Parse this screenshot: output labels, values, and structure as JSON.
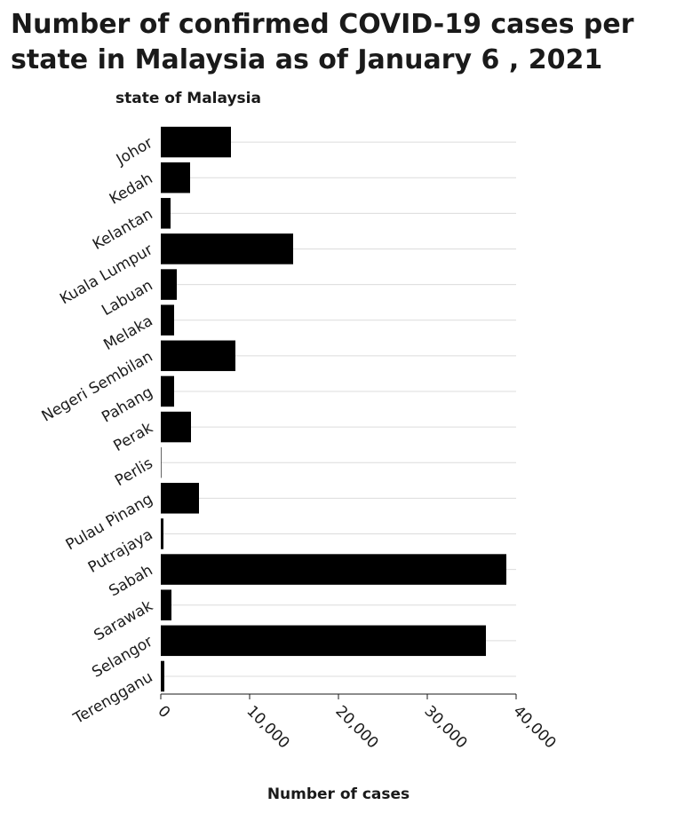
{
  "chart_data": {
    "type": "bar",
    "orientation": "horizontal",
    "title": "Number of confirmed COVID-19 cases per state in Malaysia as of January 6 , 2021",
    "xlabel": "Number of cases",
    "ylabel": "state of Malaysia",
    "categories": [
      "Johor",
      "Kedah",
      "Kelantan",
      "Kuala Lumpur",
      "Labuan",
      "Melaka",
      "Negeri Sembilan",
      "Pahang",
      "Perak",
      "Perlis",
      "Pulau Pinang",
      "Putrajaya",
      "Sabah",
      "Sarawak",
      "Selangor",
      "Terengganu"
    ],
    "values": [
      7900,
      3300,
      1100,
      14900,
      1800,
      1500,
      8400,
      1500,
      3400,
      60,
      4300,
      300,
      38900,
      1200,
      36600,
      400
    ],
    "xlim": [
      0,
      40000
    ],
    "xticks": [
      0,
      10000,
      20000,
      30000,
      40000
    ],
    "xtick_labels": [
      "0",
      "10,000",
      "20,000",
      "30,000",
      "40,000"
    ],
    "grid": "horizontal",
    "bar_color": "#000000",
    "grid_color": "#dcdcdc"
  }
}
